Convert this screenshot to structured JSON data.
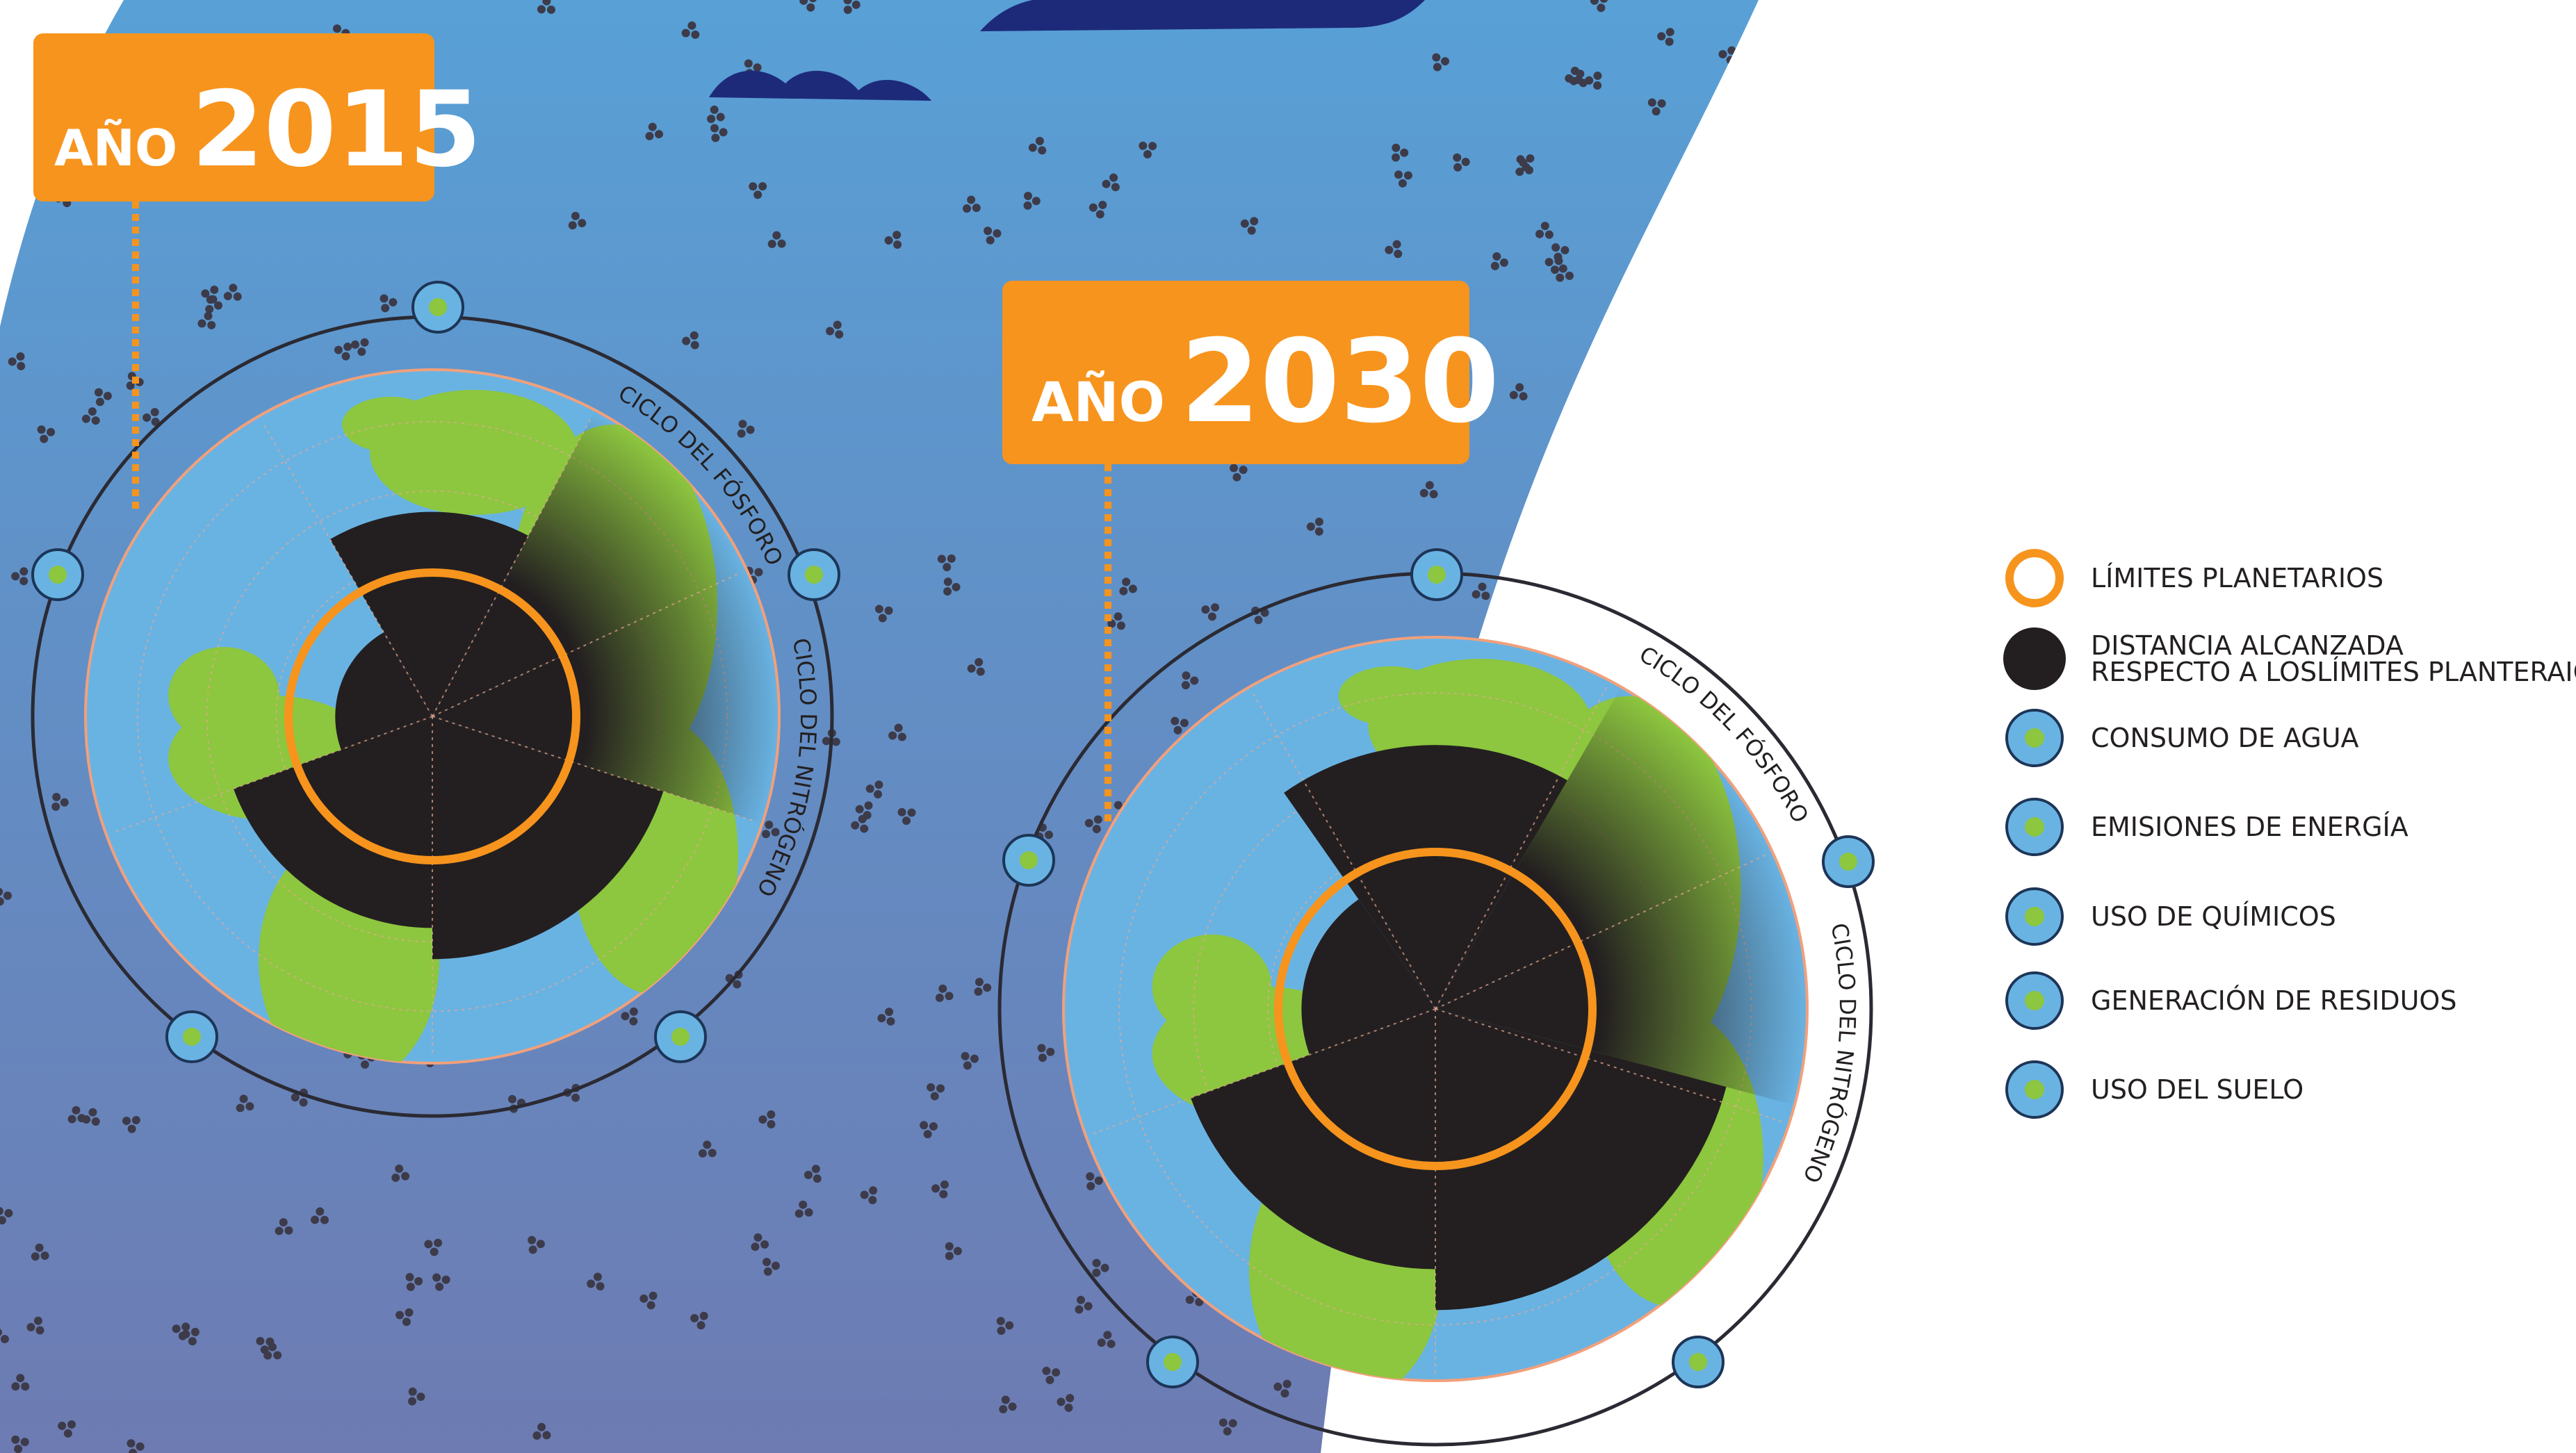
{
  "year_labels": [
    {
      "prefix": "AÑO",
      "year": "2015"
    },
    {
      "prefix": "AÑO",
      "year": "2030"
    }
  ],
  "arc_labels": [
    {
      "phosphorus": "CICLO DEL FÓSFORO",
      "nitrogen": "CICLO DEL NITRÓGENO"
    },
    {
      "phosphorus": "CICLO DEL FÓSFORO",
      "nitrogen": "CICLO DEL NITRÓGENO"
    }
  ],
  "legend": [
    {
      "lines": [
        "LÍMITES PLANETARIOS"
      ]
    },
    {
      "lines": [
        "DISTANCIA ALCANZADA",
        "RESPECTO A LOSLÍMITES PLANTERAIOS"
      ]
    },
    {
      "lines": [
        "CONSUMO DE AGUA"
      ]
    },
    {
      "lines": [
        "EMISIONES DE ENERGÍA"
      ]
    },
    {
      "lines": [
        "USO DE QUÍMICOS"
      ]
    },
    {
      "lines": [
        "GENERACIÓN DE RESIDUOS"
      ]
    },
    {
      "lines": [
        "USO DEL SUELO"
      ]
    }
  ]
}
